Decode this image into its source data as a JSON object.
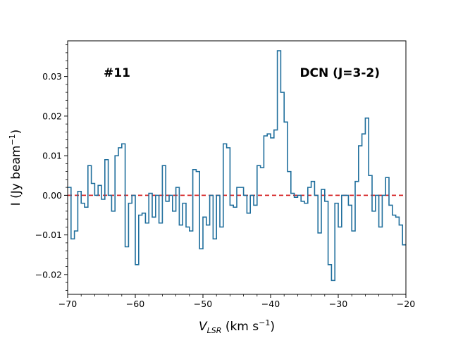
{
  "chart_data": {
    "type": "line",
    "style": "step",
    "title": "",
    "xlabel_main": "V",
    "xlabel_sub": "LSR",
    "xlabel_unit_prefix": " (km s",
    "xlabel_unit_exp": "−1",
    "xlabel_unit_suffix": ")",
    "ylabel_prefix": "I (Jy beam",
    "ylabel_exp": "−1",
    "ylabel_suffix": ")",
    "xlim": [
      -70,
      -20
    ],
    "ylim": [
      -0.025,
      0.039
    ],
    "xticks": [
      -70,
      -60,
      -50,
      -40,
      -30,
      -20
    ],
    "xtick_labels": [
      "−70",
      "−60",
      "−50",
      "−40",
      "−30",
      "−20"
    ],
    "yticks": [
      -0.02,
      -0.01,
      0.0,
      0.01,
      0.02,
      0.03
    ],
    "ytick_labels": [
      "−0.02",
      "−0.01",
      "0.00",
      "0.01",
      "0.02",
      "0.03"
    ],
    "annotations": [
      "#11",
      "DCN (J=3-2)"
    ],
    "baseline": 0.0,
    "series": [
      {
        "name": "spectrum",
        "color": "#1f6e9c",
        "x": [
          -70.0,
          -69.5,
          -69.0,
          -68.5,
          -68.0,
          -67.5,
          -67.0,
          -66.5,
          -66.0,
          -65.5,
          -65.0,
          -64.5,
          -64.0,
          -63.5,
          -63.0,
          -62.5,
          -62.0,
          -61.5,
          -61.0,
          -60.5,
          -60.0,
          -59.5,
          -59.0,
          -58.5,
          -58.0,
          -57.5,
          -57.0,
          -56.5,
          -56.0,
          -55.5,
          -55.0,
          -54.5,
          -54.0,
          -53.5,
          -53.0,
          -52.5,
          -52.0,
          -51.5,
          -51.0,
          -50.5,
          -50.0,
          -49.5,
          -49.0,
          -48.5,
          -48.0,
          -47.5,
          -47.0,
          -46.5,
          -46.0,
          -45.5,
          -45.0,
          -44.5,
          -44.0,
          -43.5,
          -43.0,
          -42.5,
          -42.0,
          -41.5,
          -41.0,
          -40.5,
          -40.0,
          -39.5,
          -39.0,
          -38.5,
          -38.0,
          -37.5,
          -37.0,
          -36.5,
          -36.0,
          -35.5,
          -35.0,
          -34.5,
          -34.0,
          -33.5,
          -33.0,
          -32.5,
          -32.0,
          -31.5,
          -31.0,
          -30.5,
          -30.0,
          -29.5,
          -29.0,
          -28.5,
          -28.0,
          -27.5,
          -27.0,
          -26.5,
          -26.0,
          -25.5,
          -25.0,
          -24.5,
          -24.0,
          -23.5,
          -23.0,
          -22.5,
          -22.0,
          -21.5,
          -21.0,
          -20.5
        ],
        "values": [
          0.002,
          -0.011,
          -0.009,
          0.001,
          -0.002,
          -0.003,
          0.0075,
          0.003,
          0.0,
          0.0025,
          -0.001,
          0.009,
          0.0,
          -0.004,
          0.01,
          0.012,
          0.013,
          -0.013,
          -0.002,
          0.0,
          -0.0175,
          -0.005,
          -0.0045,
          -0.007,
          0.0005,
          -0.0055,
          0.0,
          -0.007,
          0.0075,
          -0.0015,
          0.0,
          -0.004,
          0.002,
          -0.0075,
          -0.002,
          -0.008,
          -0.009,
          0.0065,
          0.006,
          -0.0135,
          -0.0055,
          -0.0075,
          0.0,
          -0.011,
          0.0,
          -0.008,
          0.013,
          0.012,
          -0.0025,
          -0.003,
          0.002,
          0.002,
          0.0,
          -0.0045,
          0.0,
          -0.0025,
          0.0075,
          0.007,
          0.015,
          0.0155,
          0.0145,
          0.0165,
          0.0365,
          0.026,
          0.0185,
          0.006,
          0.0005,
          -0.0005,
          0.0,
          -0.0015,
          -0.002,
          0.002,
          0.0035,
          0.0,
          -0.0095,
          0.0015,
          -0.0015,
          -0.0175,
          -0.0215,
          -0.002,
          -0.008,
          0.0,
          0.0,
          -0.0025,
          -0.009,
          0.0035,
          0.0125,
          0.0155,
          0.0195,
          0.005,
          -0.004,
          0.0,
          -0.008,
          0.0,
          0.0045,
          -0.0025,
          -0.005,
          -0.0055,
          -0.0075,
          -0.0125
        ]
      }
    ]
  }
}
